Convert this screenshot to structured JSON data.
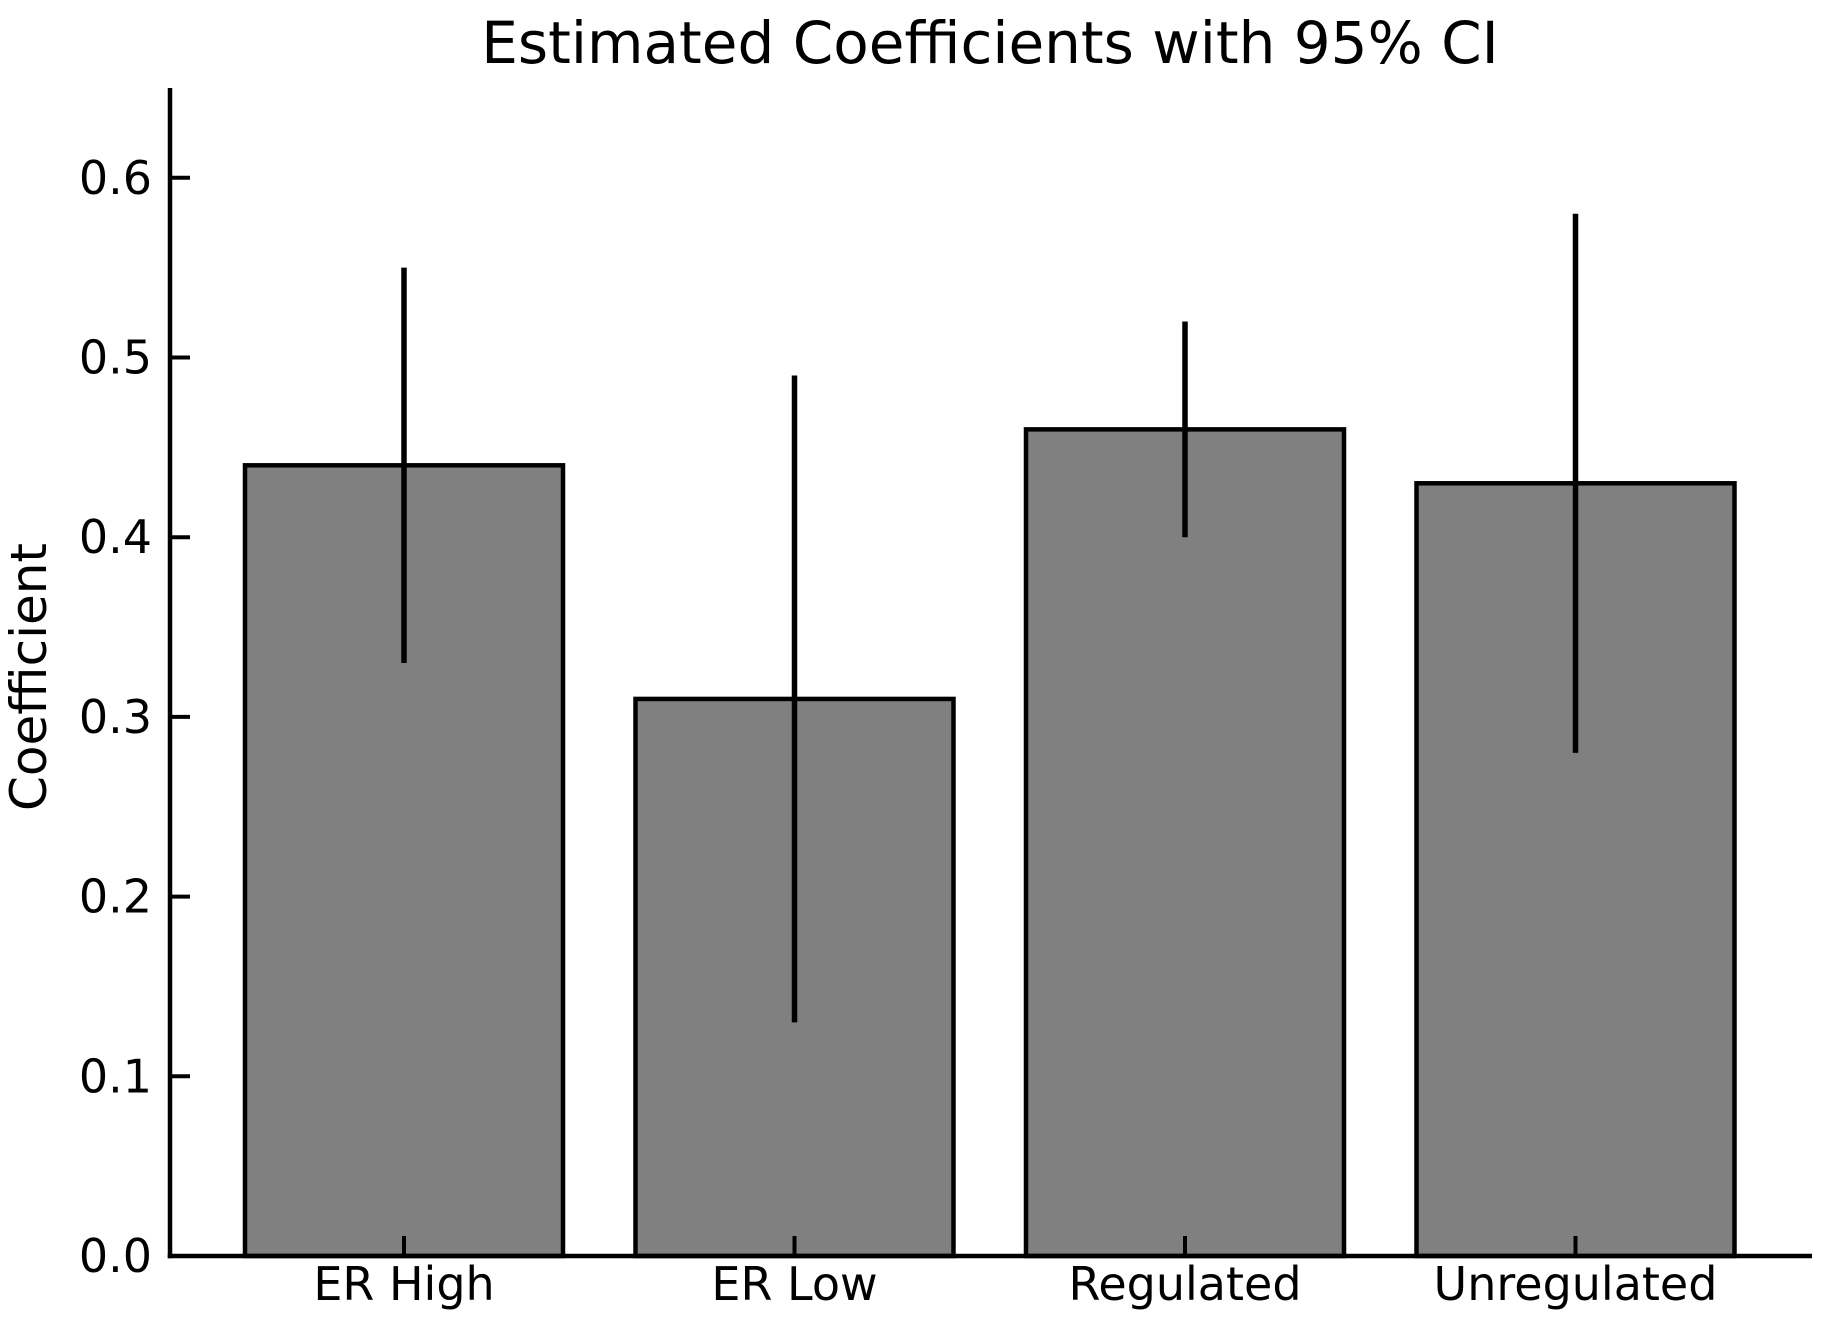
{
  "figure": {
    "background": "#ffffff"
  },
  "chart_data": {
    "type": "bar",
    "title": "Estimated Coefficients with 95% CI",
    "ylabel": "Coefficient",
    "xlabel": "",
    "categories": [
      "ER High",
      "ER Low",
      "Regulated",
      "Unregulated"
    ],
    "values": [
      0.44,
      0.31,
      0.46,
      0.43
    ],
    "error_bars": {
      "kind": "95% confidence interval",
      "lower": [
        0.33,
        0.13,
        0.4,
        0.28
      ],
      "upper": [
        0.55,
        0.49,
        0.52,
        0.58
      ]
    },
    "yticks": [
      0.0,
      0.1,
      0.2,
      0.3,
      0.4,
      0.5,
      0.6
    ],
    "ytick_labels": [
      "0.0",
      "0.1",
      "0.2",
      "0.3",
      "0.4",
      "0.5",
      "0.6"
    ],
    "ylim": [
      0,
      0.65
    ],
    "grid": false,
    "legend_position": "none",
    "bar_color": "#808080",
    "bar_edge_color": "#000000",
    "error_bar_color": "#000000",
    "axis_color": "#000000",
    "text_color": "#000000"
  }
}
